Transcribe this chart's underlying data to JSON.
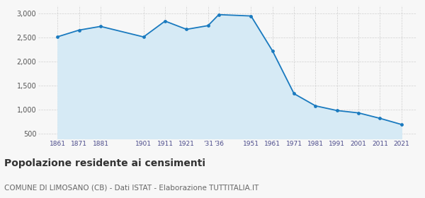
{
  "years": [
    1861,
    1871,
    1881,
    1901,
    1911,
    1921,
    1931,
    1936,
    1951,
    1961,
    1971,
    1981,
    1991,
    2001,
    2011,
    2021
  ],
  "population": [
    2511,
    2649,
    2726,
    2508,
    2836,
    2665,
    2742,
    2970,
    2942,
    2218,
    1332,
    1079,
    982,
    933,
    820,
    693
  ],
  "line_color": "#1a7abf",
  "fill_color": "#d6eaf5",
  "marker_color": "#1a7abf",
  "grid_color": "#d0d0d0",
  "background_color": "#f7f7f7",
  "title": "Popolazione residente ai censimenti",
  "subtitle": "COMUNE DI LIMOSANO (CB) - Dati ISTAT - Elaborazione TUTTITALIA.IT",
  "title_fontsize": 10,
  "subtitle_fontsize": 7.5,
  "ylim": [
    400,
    3150
  ],
  "yticks": [
    500,
    1000,
    1500,
    2000,
    2500,
    3000
  ],
  "xlim_left": 1852,
  "xlim_right": 2028
}
